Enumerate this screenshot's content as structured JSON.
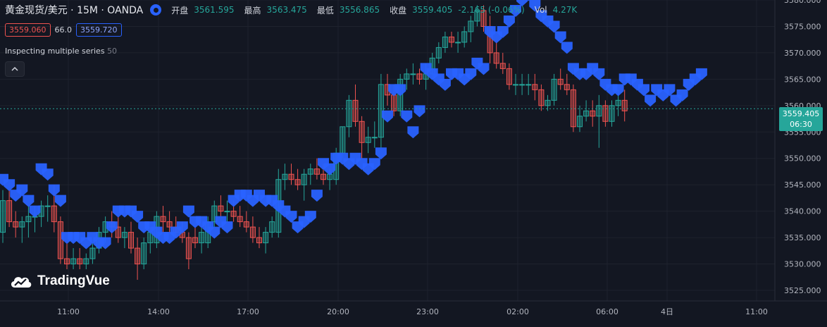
{
  "header": {
    "symbol": "黄金现货/美元 · 15M · OANDA",
    "open_label": "开盘",
    "open": "3561.595",
    "high_label": "最高",
    "high": "3563.475",
    "low_label": "最低",
    "low": "3556.865",
    "close_label": "收盘",
    "close": "3559.405",
    "change": "-2.165 (-0.06%)",
    "vol_label": "Vol",
    "vol": "4.27K"
  },
  "quote": {
    "bid": "3559.060",
    "spread": "66.0",
    "ask": "3559.720"
  },
  "indicator": {
    "label": "Inspecting multiple series",
    "period": "50"
  },
  "logo": {
    "text": "TradingVue"
  },
  "price_tag": {
    "price": "3559.405",
    "countdown": "06:30"
  },
  "colors": {
    "background": "#131722",
    "up": "#26a69a",
    "down": "#ef5350",
    "marker": "#2962ff",
    "grid": "#1e222d"
  },
  "chart_data": {
    "type": "candlestick",
    "y_axis": {
      "min": 3523,
      "max": 3580,
      "ticks": [
        3525,
        3530,
        3535,
        3540,
        3545,
        3550,
        3555,
        3560,
        3565,
        3570,
        3575,
        3580
      ]
    },
    "y_tick_labels": [
      "3525.000",
      "3530.000",
      "3535.000",
      "3540.000",
      "3545.000",
      "3550.000",
      "3555.000",
      "3560.000",
      "3565.000",
      "3570.000",
      "3575.000",
      "3580.000"
    ],
    "x_tick_labels": [
      "11:00",
      "14:00",
      "17:00",
      "20:00",
      "23:00",
      "02:00",
      "06:00",
      "4日",
      "11:00"
    ],
    "last_price": 3559.405,
    "candles": [
      {
        "o": 3536,
        "h": 3544,
        "l": 3534,
        "c": 3542
      },
      {
        "o": 3542,
        "h": 3544,
        "l": 3537,
        "c": 3538
      },
      {
        "o": 3538,
        "h": 3540,
        "l": 3535,
        "c": 3537
      },
      {
        "o": 3537,
        "h": 3539,
        "l": 3534,
        "c": 3538
      },
      {
        "o": 3538,
        "h": 3541,
        "l": 3535,
        "c": 3539
      },
      {
        "o": 3539,
        "h": 3541,
        "l": 3536,
        "c": 3539
      },
      {
        "o": 3539,
        "h": 3542,
        "l": 3537,
        "c": 3541
      },
      {
        "o": 3541,
        "h": 3543,
        "l": 3538,
        "c": 3541
      },
      {
        "o": 3541,
        "h": 3545,
        "l": 3536,
        "c": 3538
      },
      {
        "o": 3538,
        "h": 3539,
        "l": 3530,
        "c": 3531
      },
      {
        "o": 3531,
        "h": 3534,
        "l": 3529,
        "c": 3530
      },
      {
        "o": 3530,
        "h": 3533,
        "l": 3529,
        "c": 3531
      },
      {
        "o": 3531,
        "h": 3533,
        "l": 3529,
        "c": 3530
      },
      {
        "o": 3530,
        "h": 3532,
        "l": 3529,
        "c": 3531
      },
      {
        "o": 3531,
        "h": 3534,
        "l": 3530,
        "c": 3533
      },
      {
        "o": 3533,
        "h": 3537,
        "l": 3532,
        "c": 3536
      },
      {
        "o": 3536,
        "h": 3539,
        "l": 3534,
        "c": 3538
      },
      {
        "o": 3538,
        "h": 3540,
        "l": 3535,
        "c": 3537
      },
      {
        "o": 3537,
        "h": 3539,
        "l": 3534,
        "c": 3535
      },
      {
        "o": 3535,
        "h": 3537,
        "l": 3533,
        "c": 3536
      },
      {
        "o": 3536,
        "h": 3538,
        "l": 3532,
        "c": 3533
      },
      {
        "o": 3533,
        "h": 3535,
        "l": 3527,
        "c": 3530
      },
      {
        "o": 3530,
        "h": 3535,
        "l": 3529,
        "c": 3534
      },
      {
        "o": 3534,
        "h": 3537,
        "l": 3532,
        "c": 3536
      },
      {
        "o": 3534,
        "h": 3540,
        "l": 3533,
        "c": 3539
      },
      {
        "o": 3539,
        "h": 3541,
        "l": 3536,
        "c": 3538
      },
      {
        "o": 3538,
        "h": 3540,
        "l": 3536,
        "c": 3537
      },
      {
        "o": 3537,
        "h": 3539,
        "l": 3535,
        "c": 3536
      },
      {
        "o": 3536,
        "h": 3538,
        "l": 3534,
        "c": 3535
      },
      {
        "o": 3535,
        "h": 3536,
        "l": 3529,
        "c": 3531
      },
      {
        "o": 3535,
        "h": 3537,
        "l": 3533,
        "c": 3534
      },
      {
        "o": 3534,
        "h": 3537,
        "l": 3532,
        "c": 3536
      },
      {
        "o": 3534,
        "h": 3539,
        "l": 3533,
        "c": 3538
      },
      {
        "o": 3538,
        "h": 3542,
        "l": 3537,
        "c": 3541
      },
      {
        "o": 3541,
        "h": 3543,
        "l": 3539,
        "c": 3540
      },
      {
        "o": 3540,
        "h": 3542,
        "l": 3538,
        "c": 3540
      },
      {
        "o": 3540,
        "h": 3542,
        "l": 3538,
        "c": 3539
      },
      {
        "o": 3539,
        "h": 3541,
        "l": 3537,
        "c": 3538
      },
      {
        "o": 3538,
        "h": 3540,
        "l": 3536,
        "c": 3537
      },
      {
        "o": 3537,
        "h": 3539,
        "l": 3534,
        "c": 3535
      },
      {
        "o": 3535,
        "h": 3537,
        "l": 3533,
        "c": 3534
      },
      {
        "o": 3534,
        "h": 3537,
        "l": 3532,
        "c": 3536
      },
      {
        "o": 3536,
        "h": 3539,
        "l": 3535,
        "c": 3538
      },
      {
        "o": 3536,
        "h": 3548,
        "l": 3535,
        "c": 3546
      },
      {
        "o": 3546,
        "h": 3549,
        "l": 3544,
        "c": 3547
      },
      {
        "o": 3547,
        "h": 3549,
        "l": 3545,
        "c": 3546
      },
      {
        "o": 3546,
        "h": 3548,
        "l": 3544,
        "c": 3545
      },
      {
        "o": 3545,
        "h": 3548,
        "l": 3542,
        "c": 3547
      },
      {
        "o": 3547,
        "h": 3549,
        "l": 3545,
        "c": 3548
      },
      {
        "o": 3548,
        "h": 3550,
        "l": 3546,
        "c": 3547
      },
      {
        "o": 3547,
        "h": 3549,
        "l": 3545,
        "c": 3546
      },
      {
        "o": 3546,
        "h": 3548,
        "l": 3544,
        "c": 3547
      },
      {
        "o": 3546,
        "h": 3552,
        "l": 3545,
        "c": 3551
      },
      {
        "o": 3551,
        "h": 3556,
        "l": 3550,
        "c": 3556
      },
      {
        "o": 3556,
        "h": 3562,
        "l": 3554,
        "c": 3561
      },
      {
        "o": 3561,
        "h": 3564,
        "l": 3556,
        "c": 3557
      },
      {
        "o": 3557,
        "h": 3558,
        "l": 3550,
        "c": 3553
      },
      {
        "o": 3553,
        "h": 3556,
        "l": 3551,
        "c": 3554
      },
      {
        "o": 3554,
        "h": 3557,
        "l": 3552,
        "c": 3554
      },
      {
        "o": 3554,
        "h": 3566,
        "l": 3552,
        "c": 3564
      },
      {
        "o": 3564,
        "h": 3566,
        "l": 3560,
        "c": 3562
      },
      {
        "o": 3562,
        "h": 3564,
        "l": 3558,
        "c": 3559
      },
      {
        "o": 3559,
        "h": 3566,
        "l": 3558,
        "c": 3565
      },
      {
        "o": 3565,
        "h": 3567,
        "l": 3563,
        "c": 3566
      },
      {
        "o": 3566,
        "h": 3568,
        "l": 3564,
        "c": 3566
      },
      {
        "o": 3566,
        "h": 3567,
        "l": 3564,
        "c": 3565
      },
      {
        "o": 3565,
        "h": 3568,
        "l": 3563,
        "c": 3566
      },
      {
        "o": 3566,
        "h": 3570,
        "l": 3565,
        "c": 3569
      },
      {
        "o": 3569,
        "h": 3572,
        "l": 3568,
        "c": 3571
      },
      {
        "o": 3571,
        "h": 3574,
        "l": 3570,
        "c": 3573
      },
      {
        "o": 3573,
        "h": 3574,
        "l": 3571,
        "c": 3572
      },
      {
        "o": 3572,
        "h": 3574,
        "l": 3570,
        "c": 3572
      },
      {
        "o": 3572,
        "h": 3575,
        "l": 3571,
        "c": 3574
      },
      {
        "o": 3574,
        "h": 3577,
        "l": 3572,
        "c": 3576
      },
      {
        "o": 3576,
        "h": 3579,
        "l": 3575,
        "c": 3578
      },
      {
        "o": 3578,
        "h": 3579,
        "l": 3574,
        "c": 3575
      },
      {
        "o": 3575,
        "h": 3577,
        "l": 3568,
        "c": 3570
      },
      {
        "o": 3570,
        "h": 3572,
        "l": 3567,
        "c": 3568
      },
      {
        "o": 3568,
        "h": 3570,
        "l": 3566,
        "c": 3567
      },
      {
        "o": 3567,
        "h": 3568,
        "l": 3563,
        "c": 3564
      },
      {
        "o": 3564,
        "h": 3566,
        "l": 3562,
        "c": 3564
      },
      {
        "o": 3564,
        "h": 3566,
        "l": 3562,
        "c": 3564
      },
      {
        "o": 3564,
        "h": 3566,
        "l": 3562,
        "c": 3564
      },
      {
        "o": 3564,
        "h": 3566,
        "l": 3561,
        "c": 3563
      },
      {
        "o": 3563,
        "h": 3564,
        "l": 3559,
        "c": 3560
      },
      {
        "o": 3560,
        "h": 3562,
        "l": 3559,
        "c": 3561
      },
      {
        "o": 3561,
        "h": 3566,
        "l": 3560,
        "c": 3565
      },
      {
        "o": 3565,
        "h": 3567,
        "l": 3563,
        "c": 3564
      },
      {
        "o": 3564,
        "h": 3566,
        "l": 3562,
        "c": 3563
      },
      {
        "o": 3563,
        "h": 3564,
        "l": 3555,
        "c": 3556
      },
      {
        "o": 3556,
        "h": 3560,
        "l": 3555,
        "c": 3558
      },
      {
        "o": 3558,
        "h": 3561,
        "l": 3557,
        "c": 3559
      },
      {
        "o": 3559,
        "h": 3561,
        "l": 3556,
        "c": 3558
      },
      {
        "o": 3558,
        "h": 3562,
        "l": 3552,
        "c": 3560
      },
      {
        "o": 3560,
        "h": 3561,
        "l": 3556,
        "c": 3557
      },
      {
        "o": 3557,
        "h": 3561,
        "l": 3556,
        "c": 3560
      },
      {
        "o": 3560,
        "h": 3563,
        "l": 3558,
        "c": 3561
      },
      {
        "o": 3561,
        "h": 3563,
        "l": 3557,
        "c": 3559
      }
    ],
    "markers": [
      {
        "i": 0,
        "y": 3546
      },
      {
        "i": 1,
        "y": 3545
      },
      {
        "i": 2,
        "y": 3543
      },
      {
        "i": 3,
        "y": 3544
      },
      {
        "i": 4,
        "y": 3542
      },
      {
        "i": 5,
        "y": 3540
      },
      {
        "i": 6,
        "y": 3548
      },
      {
        "i": 7,
        "y": 3547
      },
      {
        "i": 8,
        "y": 3544
      },
      {
        "i": 9,
        "y": 3542
      },
      {
        "i": 10,
        "y": 3535
      },
      {
        "i": 11,
        "y": 3535
      },
      {
        "i": 12,
        "y": 3535
      },
      {
        "i": 13,
        "y": 3534
      },
      {
        "i": 14,
        "y": 3535
      },
      {
        "i": 15,
        "y": 3534
      },
      {
        "i": 16,
        "y": 3534
      },
      {
        "i": 17,
        "y": 3537
      },
      {
        "i": 18,
        "y": 3540
      },
      {
        "i": 19,
        "y": 3540
      },
      {
        "i": 20,
        "y": 3540
      },
      {
        "i": 21,
        "y": 3539
      },
      {
        "i": 22,
        "y": 3537
      },
      {
        "i": 23,
        "y": 3537
      },
      {
        "i": 24,
        "y": 3536
      },
      {
        "i": 25,
        "y": 3535
      },
      {
        "i": 26,
        "y": 3535
      },
      {
        "i": 27,
        "y": 3536
      },
      {
        "i": 28,
        "y": 3537
      },
      {
        "i": 29,
        "y": 3540
      },
      {
        "i": 30,
        "y": 3538
      },
      {
        "i": 31,
        "y": 3538
      },
      {
        "i": 32,
        "y": 3537
      },
      {
        "i": 33,
        "y": 3536
      },
      {
        "i": 34,
        "y": 3538
      },
      {
        "i": 35,
        "y": 3537
      },
      {
        "i": 36,
        "y": 3542
      },
      {
        "i": 37,
        "y": 3543
      },
      {
        "i": 38,
        "y": 3543
      },
      {
        "i": 39,
        "y": 3542
      },
      {
        "i": 40,
        "y": 3543
      },
      {
        "i": 41,
        "y": 3542
      },
      {
        "i": 42,
        "y": 3542
      },
      {
        "i": 43,
        "y": 3541
      },
      {
        "i": 44,
        "y": 3540
      },
      {
        "i": 45,
        "y": 3539
      },
      {
        "i": 46,
        "y": 3537
      },
      {
        "i": 47,
        "y": 3538
      },
      {
        "i": 48,
        "y": 3539
      },
      {
        "i": 49,
        "y": 3543
      },
      {
        "i": 50,
        "y": 3549
      },
      {
        "i": 51,
        "y": 3548
      },
      {
        "i": 52,
        "y": 3550
      },
      {
        "i": 53,
        "y": 3550
      },
      {
        "i": 54,
        "y": 3549
      },
      {
        "i": 55,
        "y": 3550
      },
      {
        "i": 56,
        "y": 3549
      },
      {
        "i": 57,
        "y": 3548
      },
      {
        "i": 58,
        "y": 3549
      },
      {
        "i": 59,
        "y": 3551
      },
      {
        "i": 60,
        "y": 3558
      },
      {
        "i": 61,
        "y": 3563
      },
      {
        "i": 62,
        "y": 3563
      },
      {
        "i": 63,
        "y": 3558
      },
      {
        "i": 64,
        "y": 3555
      },
      {
        "i": 65,
        "y": 3559
      },
      {
        "i": 66,
        "y": 3567
      },
      {
        "i": 67,
        "y": 3566
      },
      {
        "i": 68,
        "y": 3565
      },
      {
        "i": 69,
        "y": 3564
      },
      {
        "i": 70,
        "y": 3566
      },
      {
        "i": 71,
        "y": 3566
      },
      {
        "i": 72,
        "y": 3565
      },
      {
        "i": 73,
        "y": 3566
      },
      {
        "i": 74,
        "y": 3568
      },
      {
        "i": 75,
        "y": 3567
      },
      {
        "i": 76,
        "y": 3574
      },
      {
        "i": 77,
        "y": 3573
      },
      {
        "i": 78,
        "y": 3574
      },
      {
        "i": 79,
        "y": 3576
      },
      {
        "i": 80,
        "y": 3578
      },
      {
        "i": 81,
        "y": 3580
      },
      {
        "i": 82,
        "y": 3581
      },
      {
        "i": 83,
        "y": 3579
      },
      {
        "i": 84,
        "y": 3577
      },
      {
        "i": 85,
        "y": 3576
      },
      {
        "i": 86,
        "y": 3575
      },
      {
        "i": 87,
        "y": 3573
      },
      {
        "i": 88,
        "y": 3571
      },
      {
        "i": 89,
        "y": 3567
      },
      {
        "i": 90,
        "y": 3566
      },
      {
        "i": 91,
        "y": 3566
      },
      {
        "i": 92,
        "y": 3567
      },
      {
        "i": 93,
        "y": 3566
      },
      {
        "i": 94,
        "y": 3564
      },
      {
        "i": 95,
        "y": 3563
      },
      {
        "i": 96,
        "y": 3563
      },
      {
        "i": 97,
        "y": 3565
      },
      {
        "i": 98,
        "y": 3565
      },
      {
        "i": 99,
        "y": 3564
      },
      {
        "i": 100,
        "y": 3563
      },
      {
        "i": 101,
        "y": 3561
      },
      {
        "i": 102,
        "y": 3563
      },
      {
        "i": 103,
        "y": 3562
      },
      {
        "i": 104,
        "y": 3563
      },
      {
        "i": 105,
        "y": 3561
      },
      {
        "i": 106,
        "y": 3562
      },
      {
        "i": 107,
        "y": 3564
      },
      {
        "i": 108,
        "y": 3565
      },
      {
        "i": 109,
        "y": 3566
      }
    ]
  }
}
